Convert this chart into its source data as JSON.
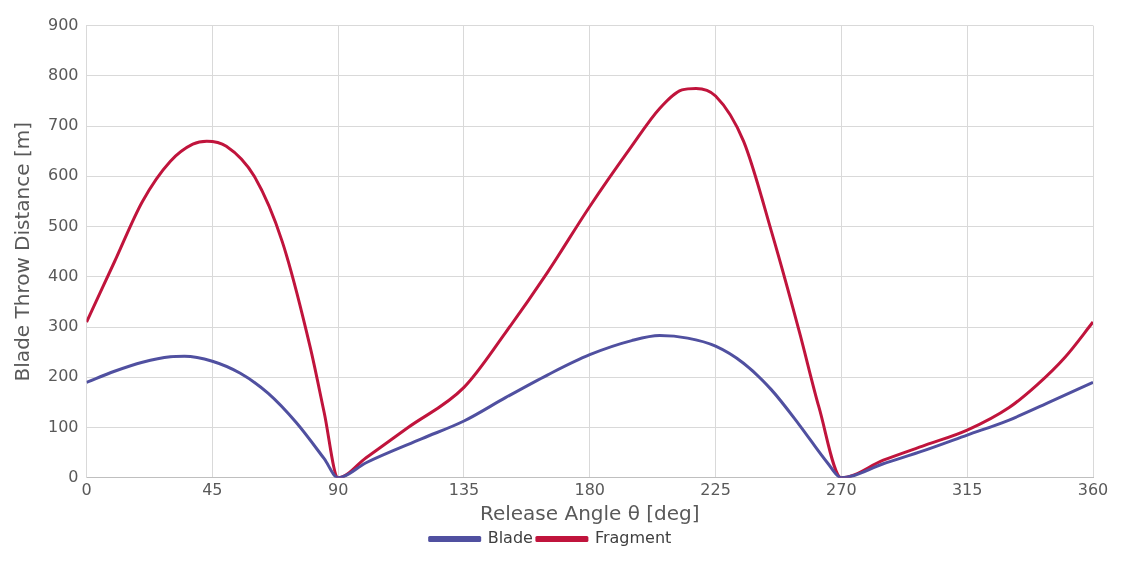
{
  "chart_data": {
    "type": "line",
    "xlabel": "Release Angle θ [deg]",
    "ylabel": "Blade Throw Distance [m]",
    "xlim": [
      0,
      360
    ],
    "xticks": [
      0,
      45,
      90,
      135,
      180,
      225,
      270,
      315,
      360
    ],
    "ylim": [
      0,
      900
    ],
    "yticks": [
      0,
      100,
      200,
      300,
      400,
      500,
      600,
      700,
      800,
      900
    ],
    "grid": true,
    "legend": "bottom",
    "marker": "none",
    "line_style": "solid",
    "series": [
      {
        "name": "Blade",
        "color": "#5050a0",
        "x": [
          0,
          10,
          20,
          30,
          35,
          45,
          55,
          65,
          75,
          85,
          90,
          100,
          120,
          135,
          150,
          165,
          180,
          195,
          205,
          215,
          225,
          235,
          245,
          255,
          265,
          270,
          285,
          300,
          315,
          330,
          345,
          360
        ],
        "values": [
          190,
          212,
          230,
          241,
          242,
          232,
          208,
          168,
          110,
          38,
          0,
          30,
          78,
          113,
          160,
          205,
          245,
          273,
          283,
          278,
          262,
          228,
          175,
          105,
          30,
          0,
          28,
          55,
          85,
          115,
          152,
          190
        ]
      },
      {
        "name": "Fragment",
        "color": "#c0143c",
        "x": [
          0,
          10,
          20,
          30,
          38,
          43,
          50,
          60,
          70,
          80,
          85,
          90,
          100,
          115,
          135,
          150,
          165,
          180,
          195,
          205,
          213,
          218,
          225,
          235,
          245,
          255,
          262,
          270,
          285,
          300,
          315,
          330,
          340,
          350,
          360
        ],
        "values": [
          310,
          430,
          550,
          630,
          664,
          670,
          660,
          600,
          470,
          260,
          130,
          0,
          40,
          100,
          180,
          290,
          410,
          540,
          660,
          735,
          772,
          775,
          760,
          670,
          490,
          290,
          140,
          0,
          35,
          65,
          95,
          140,
          185,
          240,
          310
        ]
      }
    ]
  }
}
